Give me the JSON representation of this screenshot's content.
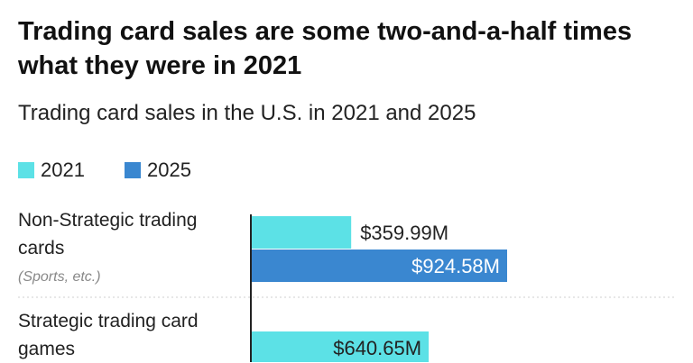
{
  "header": {
    "title": "Trading card sales are some two-and-a-half times what they were in 2021",
    "subtitle": "Trading card sales in the U.S. in 2021 and 2025"
  },
  "chart_data": {
    "type": "bar",
    "orientation": "horizontal",
    "categories": [
      "Non-Strategic trading cards",
      "Strategic trading card games"
    ],
    "category_notes": [
      "(Sports, etc.)",
      ""
    ],
    "series": [
      {
        "name": "2021",
        "values": [
          359.99,
          640.65
        ],
        "labels": [
          "$359.99M",
          "$640.65M"
        ],
        "color": "#5ce1e6"
      },
      {
        "name": "2025",
        "values": [
          924.58,
          null
        ],
        "labels": [
          "$924.58M",
          ""
        ],
        "color": "#3a87d0"
      }
    ],
    "unit": "$M",
    "xlim": [
      0,
      1400
    ],
    "grid": false,
    "legend_position": "top-left"
  }
}
